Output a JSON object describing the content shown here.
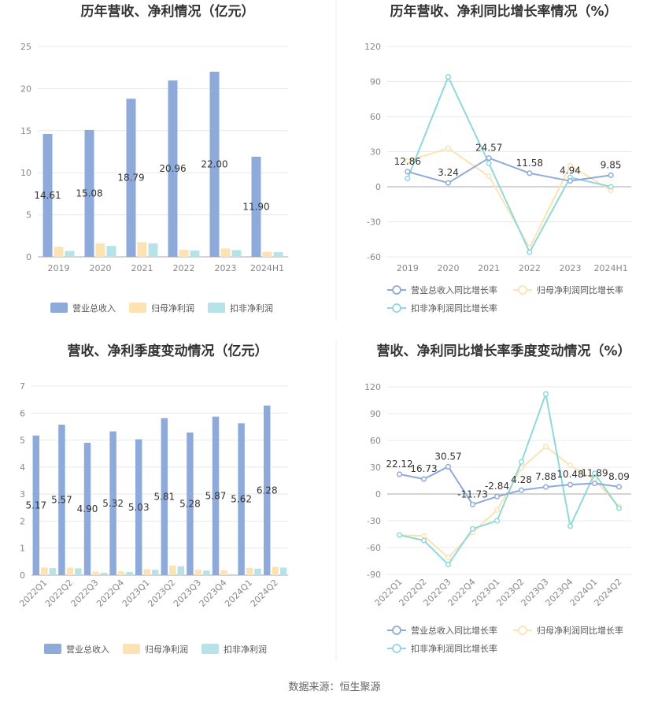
{
  "source": "数据来源：恒生聚源",
  "colors": {
    "revenue": "#8eaadb",
    "parent_np": "#fde3b3",
    "deducted_np": "#b7e3e8",
    "revenue_line": "#8eaadb",
    "parent_line": "#fde3b3",
    "deducted_line": "#8fd8dc"
  },
  "chart_data": [
    {
      "type": "bar",
      "title": "历年营收、净利情况（亿元）",
      "categories": [
        "2019",
        "2020",
        "2021",
        "2022",
        "2023",
        "2024H1"
      ],
      "ylim": [
        0,
        25
      ],
      "yticks": [
        0,
        5,
        10,
        15,
        20,
        25
      ],
      "grid": true,
      "legend_position": "bottom",
      "series": [
        {
          "name": "营业总收入",
          "values": [
            14.61,
            15.08,
            18.79,
            20.96,
            22.0,
            11.9
          ],
          "labels": [
            "14.61",
            "15.08",
            "18.79",
            "20.96",
            "22.00",
            "11.90"
          ]
        },
        {
          "name": "归母净利润",
          "values": [
            1.2,
            1.6,
            1.75,
            0.85,
            1.0,
            0.6
          ]
        },
        {
          "name": "扣非净利润",
          "values": [
            0.7,
            1.3,
            1.6,
            0.75,
            0.8,
            0.55
          ]
        }
      ]
    },
    {
      "type": "line",
      "title": "历年营收、净利同比增长率情况（%）",
      "categories": [
        "2019",
        "2020",
        "2021",
        "2022",
        "2023",
        "2024H1"
      ],
      "ylim": [
        -60,
        120
      ],
      "yticks": [
        -60,
        -30,
        0,
        30,
        60,
        90,
        120
      ],
      "grid": true,
      "legend_position": "bottom",
      "series": [
        {
          "name": "营业总收入同比增长率",
          "values": [
            12.86,
            3.24,
            24.57,
            11.58,
            4.94,
            9.85
          ],
          "labels": [
            "12.86",
            "3.24",
            "24.57",
            "11.58",
            "4.94",
            "9.85"
          ]
        },
        {
          "name": "归母净利润同比增长率",
          "values": [
            22,
            33,
            9,
            -52,
            18,
            -3
          ]
        },
        {
          "name": "扣非净利润同比增长率",
          "values": [
            7,
            94,
            20,
            -56,
            8,
            0
          ]
        }
      ]
    },
    {
      "type": "bar",
      "title": "营收、净利季度变动情况（亿元）",
      "categories": [
        "2022Q1",
        "2022Q2",
        "2022Q3",
        "2022Q4",
        "2023Q1",
        "2023Q2",
        "2023Q3",
        "2023Q4",
        "2024Q1",
        "2024Q2"
      ],
      "ylim": [
        0,
        7
      ],
      "yticks": [
        0,
        1,
        2,
        3,
        4,
        5,
        6,
        7
      ],
      "grid": true,
      "legend_position": "bottom",
      "series": [
        {
          "name": "营业总收入",
          "values": [
            5.17,
            5.57,
            4.9,
            5.32,
            5.03,
            5.81,
            5.28,
            5.87,
            5.62,
            6.28
          ],
          "labels": [
            "5.17",
            "5.57",
            "4.90",
            "5.32",
            "5.03",
            "5.81",
            "5.28",
            "5.87",
            "5.62",
            "6.28"
          ]
        },
        {
          "name": "归母净利润",
          "values": [
            0.28,
            0.28,
            0.13,
            0.14,
            0.22,
            0.36,
            0.2,
            0.18,
            0.27,
            0.31
          ]
        },
        {
          "name": "扣非净利润",
          "values": [
            0.26,
            0.25,
            0.09,
            0.12,
            0.2,
            0.33,
            0.17,
            0.04,
            0.24,
            0.28
          ]
        }
      ]
    },
    {
      "type": "line",
      "title": "营收、净利同比增长率季度变动情况（%）",
      "categories": [
        "2022Q1",
        "2022Q2",
        "2022Q3",
        "2022Q4",
        "2023Q1",
        "2023Q2",
        "2023Q3",
        "2023Q4",
        "2024Q1",
        "2024Q2"
      ],
      "ylim": [
        -90,
        120
      ],
      "yticks": [
        -90,
        -60,
        -30,
        0,
        30,
        60,
        90,
        120
      ],
      "grid": true,
      "legend_position": "bottom",
      "series": [
        {
          "name": "营业总收入同比增长率",
          "values": [
            22.12,
            16.73,
            30.57,
            -11.73,
            -2.84,
            4.28,
            7.88,
            10.48,
            11.89,
            8.09
          ],
          "labels": [
            "22.12",
            "16.73",
            "30.57",
            "-11.73",
            "-2.84",
            "4.28",
            "7.88",
            "10.48",
            "11.89",
            "8.09"
          ]
        },
        {
          "name": "归母净利润同比增长率",
          "values": [
            -46,
            -47,
            -71,
            -43,
            -18,
            29,
            53,
            32,
            16,
            -14
          ]
        },
        {
          "name": "扣非净利润同比增长率",
          "values": [
            -46,
            -52,
            -79,
            -39,
            -30,
            36,
            112,
            -36,
            23,
            -16
          ]
        }
      ]
    }
  ]
}
